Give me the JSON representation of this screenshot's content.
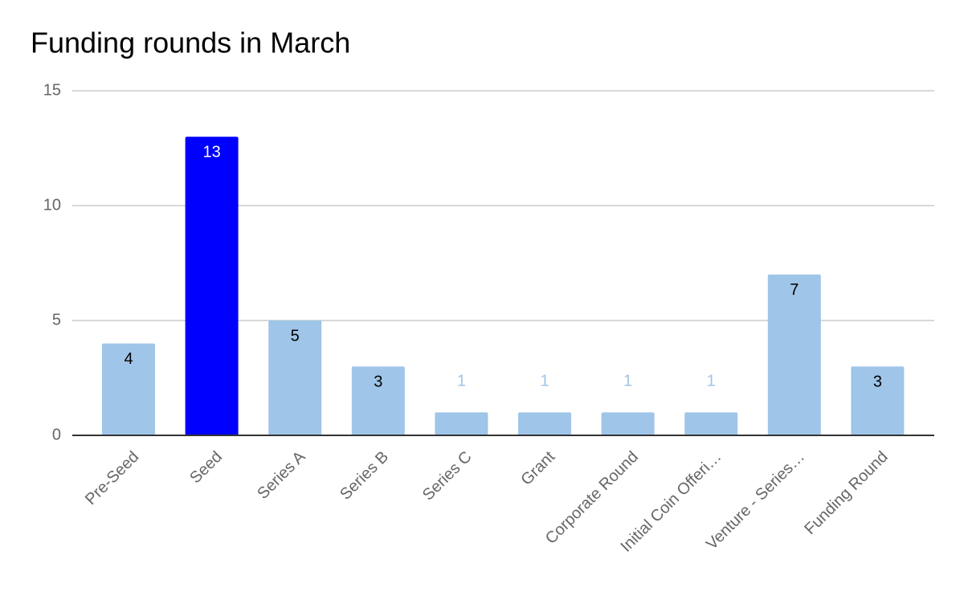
{
  "chart_data": {
    "type": "bar",
    "title": "Funding rounds in March",
    "categories": [
      "Pre-Seed",
      "Seed",
      "Series A",
      "Series B",
      "Series C",
      "Grant",
      "Corporate Round",
      "Initial Coin Offeri…",
      "Venture - Series…",
      "Funding Round"
    ],
    "values": [
      4,
      13,
      5,
      3,
      1,
      1,
      1,
      1,
      7,
      3
    ],
    "colors": [
      "#9fc5e8",
      "#0000ff",
      "#9fc5e8",
      "#9fc5e8",
      "#9fc5e8",
      "#9fc5e8",
      "#9fc5e8",
      "#9fc5e8",
      "#9fc5e8",
      "#9fc5e8"
    ],
    "ylim": [
      0,
      15
    ],
    "yticks": [
      0,
      5,
      10,
      15
    ],
    "grid": true
  }
}
